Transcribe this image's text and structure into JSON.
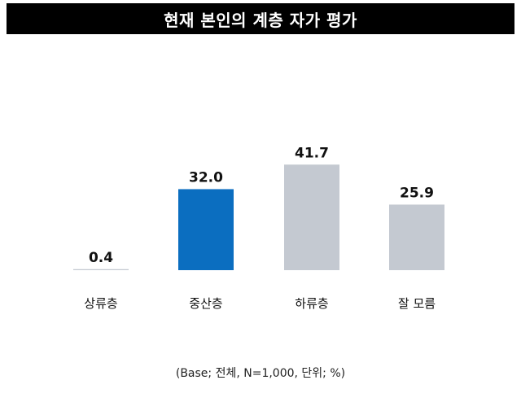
{
  "title": "현재 본인의 계층 자가 평가",
  "footnote": "(Base; 전체, N=1,000, 단위; %)",
  "colors": {
    "highlight": "#0b6ec0",
    "default": "#c4c9d1",
    "title_bg": "#000000",
    "title_text": "#ffffff"
  },
  "chart_data": {
    "type": "bar",
    "title": "현재 본인의 계층 자가 평가",
    "categories": [
      "상류층",
      "중산층",
      "하류층",
      "잘 모름"
    ],
    "values": [
      0.4,
      32.0,
      41.7,
      25.9
    ],
    "value_labels": [
      "0.4",
      "32.0",
      "41.7",
      "25.9"
    ],
    "highlight_index": 1,
    "ylim": [
      0,
      45
    ],
    "grid": false,
    "legend": "none",
    "xlabel": "",
    "ylabel": ""
  }
}
